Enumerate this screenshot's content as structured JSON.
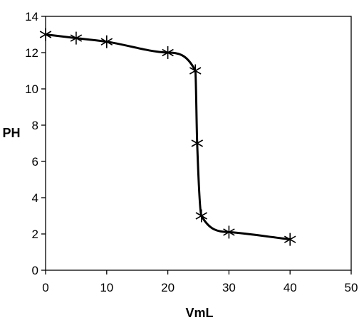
{
  "chart_data": {
    "type": "scatter",
    "title": "",
    "xlabel": "VmL",
    "ylabel": "PH",
    "xlim": [
      0,
      50
    ],
    "ylim": [
      0,
      14
    ],
    "x_ticks": [
      0,
      10,
      20,
      30,
      40,
      50
    ],
    "y_ticks": [
      0,
      2,
      4,
      6,
      8,
      10,
      12,
      14
    ],
    "grid": false,
    "legend": "none",
    "marker": "asterisk",
    "series": [
      {
        "x": [
          0,
          5,
          10,
          20,
          24.5,
          24.8,
          25.5,
          30,
          40
        ],
        "y": [
          13,
          12.8,
          12.6,
          12,
          11,
          7,
          3,
          2.1,
          1.7
        ],
        "color": "#000000"
      }
    ]
  }
}
